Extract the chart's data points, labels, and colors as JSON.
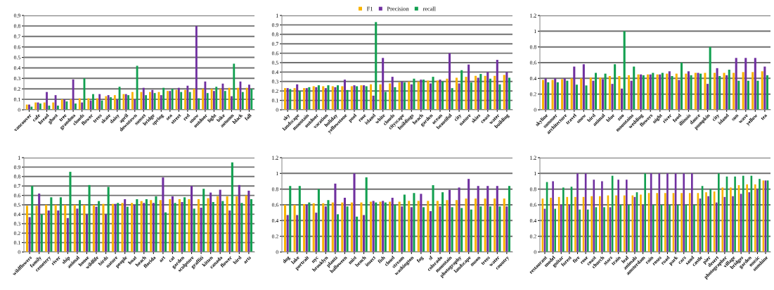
{
  "chart_data": [
    {
      "type": "bar",
      "grid": "y",
      "ylim": [
        0,
        0.9
      ],
      "yticks": [
        0,
        0.1,
        0.2,
        0.3,
        0.4,
        0.5,
        0.6,
        0.7,
        0.8,
        0.9
      ],
      "categories": [
        "vancouver",
        "cafe",
        "bread",
        "ghost",
        "tree",
        "grandma",
        "clouds",
        "flower",
        "trees",
        "skate",
        "daisy",
        "april",
        "downtown",
        "sunset",
        "bridge",
        "spring",
        "sea",
        "street",
        "red",
        "snow",
        "outdoor",
        "light",
        "bike",
        "autumn",
        "black",
        "fall"
      ],
      "series": [
        {
          "color": "#f9b400",
          "values": [
            0.05,
            0.07,
            0.07,
            0.07,
            0.1,
            0.1,
            0.11,
            0.11,
            0.11,
            0.13,
            0.14,
            0.15,
            0.17,
            0.17,
            0.17,
            0.17,
            0.18,
            0.19,
            0.19,
            0.2,
            0.2,
            0.2,
            0.2,
            0.21,
            0.21,
            0.21
          ]
        },
        {
          "color": "#7030a0",
          "values": [
            0.05,
            0.07,
            0.17,
            0.14,
            0.1,
            0.29,
            0.07,
            0.09,
            0.15,
            0.14,
            0.1,
            0.15,
            0.1,
            0.21,
            0.19,
            0.14,
            0.18,
            0.21,
            0.23,
            0.8,
            0.27,
            0.18,
            0.25,
            0.13,
            0.27,
            0.24
          ]
        },
        {
          "color": "#12a050",
          "values": [
            0.03,
            0.06,
            0.04,
            0.04,
            0.08,
            0.06,
            0.3,
            0.15,
            0.09,
            0.12,
            0.22,
            0.14,
            0.42,
            0.14,
            0.16,
            0.21,
            0.2,
            0.17,
            0.17,
            0.11,
            0.16,
            0.22,
            0.18,
            0.44,
            0.17,
            0.2
          ]
        }
      ]
    },
    {
      "type": "bar",
      "grid": "y",
      "legend": "top",
      "ylim": [
        0,
        1
      ],
      "yticks": [
        0,
        0.1,
        0.2,
        0.3,
        0.4,
        0.5,
        0.6,
        0.7,
        0.8,
        0.9,
        1
      ],
      "categories": [
        "sky",
        "landscape",
        "mountain",
        "outdoor",
        "vacation",
        "holiday",
        "yellowstone",
        "pool",
        "rose",
        "island",
        "white",
        "clouds",
        "cityscape",
        "buildings",
        "beach",
        "garden",
        "ocean",
        "beautiful",
        "city",
        "nature",
        "skies",
        "coast",
        "water",
        "building"
      ],
      "series": [
        {
          "name": "F1",
          "color": "#f9b400",
          "values": [
            0.23,
            0.23,
            0.23,
            0.25,
            0.25,
            0.25,
            0.25,
            0.25,
            0.26,
            0.27,
            0.27,
            0.28,
            0.29,
            0.3,
            0.3,
            0.31,
            0.31,
            0.33,
            0.34,
            0.35,
            0.36,
            0.36,
            0.36,
            0.37
          ]
        },
        {
          "name": "Precision",
          "color": "#7030a0",
          "values": [
            0.23,
            0.27,
            0.23,
            0.24,
            0.23,
            0.24,
            0.32,
            0.26,
            0.26,
            0.15,
            0.55,
            0.35,
            0.3,
            0.27,
            0.32,
            0.28,
            0.32,
            0.6,
            0.28,
            0.48,
            0.34,
            0.4,
            0.53,
            0.4
          ]
        },
        {
          "name": "recall",
          "color": "#12a050",
          "values": [
            0.22,
            0.2,
            0.24,
            0.26,
            0.26,
            0.26,
            0.21,
            0.25,
            0.25,
            0.93,
            0.19,
            0.24,
            0.29,
            0.33,
            0.32,
            0.35,
            0.3,
            0.23,
            0.42,
            0.29,
            0.38,
            0.33,
            0.27,
            0.34
          ]
        }
      ]
    },
    {
      "type": "bar",
      "grid": "y",
      "ylim": [
        0,
        1.2
      ],
      "yticks": [
        0,
        0.2,
        0.4,
        0.6,
        0.8,
        1,
        1.2
      ],
      "categories": [
        "skyline",
        "summer",
        "architecture",
        "travel",
        "snow",
        "bird",
        "animal",
        "blue",
        "zoo",
        "mountains",
        "wedding",
        "flowers",
        "night",
        "river",
        "food",
        "illinois",
        "dance",
        "pumpkin",
        "city",
        "island",
        "sun",
        "wave",
        "yellow",
        "tea"
      ],
      "series": [
        {
          "color": "#f9b400",
          "values": [
            0.38,
            0.38,
            0.39,
            0.4,
            0.4,
            0.41,
            0.41,
            0.43,
            0.43,
            0.44,
            0.45,
            0.45,
            0.45,
            0.46,
            0.46,
            0.46,
            0.47,
            0.47,
            0.47,
            0.47,
            0.47,
            0.48,
            0.48,
            0.49
          ]
        },
        {
          "color": "#7030a0",
          "values": [
            0.4,
            0.4,
            0.4,
            0.55,
            0.58,
            0.37,
            0.39,
            0.33,
            0.27,
            0.37,
            0.45,
            0.45,
            0.45,
            0.49,
            0.38,
            0.49,
            0.47,
            0.33,
            0.53,
            0.44,
            0.66,
            0.66,
            0.66,
            0.55
          ]
        },
        {
          "color": "#12a050",
          "values": [
            0.35,
            0.35,
            0.37,
            0.32,
            0.31,
            0.47,
            0.46,
            0.58,
            1.0,
            0.55,
            0.44,
            0.47,
            0.47,
            0.43,
            0.6,
            0.44,
            0.46,
            0.8,
            0.43,
            0.51,
            0.37,
            0.37,
            0.37,
            0.44
          ]
        }
      ]
    },
    {
      "type": "bar",
      "grid": "y",
      "ylim": [
        0,
        1
      ],
      "yticks": [
        0,
        0.1,
        0.2,
        0.3,
        0.4,
        0.5,
        0.6,
        0.7,
        0.8,
        0.9,
        1
      ],
      "categories": [
        "wildflowers",
        "family",
        "cemetery",
        "river",
        "ship",
        "animal",
        "house",
        "wildlife",
        "birds",
        "nature",
        "people",
        "boat",
        "beach",
        "florida",
        "art",
        "cat",
        "garden",
        "sculpture",
        "graffiti",
        "kitten",
        "canada",
        "flower",
        "bird",
        "arts"
      ],
      "series": [
        {
          "color": "#f9b400",
          "values": [
            0.49,
            0.49,
            0.5,
            0.5,
            0.5,
            0.5,
            0.5,
            0.5,
            0.51,
            0.51,
            0.52,
            0.52,
            0.54,
            0.55,
            0.55,
            0.56,
            0.56,
            0.56,
            0.56,
            0.57,
            0.59,
            0.59,
            0.59,
            0.6
          ]
        },
        {
          "color": "#7030a0",
          "values": [
            0.37,
            0.62,
            0.44,
            0.44,
            0.36,
            0.46,
            0.4,
            0.48,
            0.4,
            0.51,
            0.56,
            0.5,
            0.52,
            0.52,
            0.79,
            0.59,
            0.53,
            0.7,
            0.47,
            0.63,
            0.66,
            0.44,
            0.71,
            0.65
          ]
        },
        {
          "color": "#12a050",
          "values": [
            0.7,
            0.4,
            0.58,
            0.58,
            0.85,
            0.55,
            0.71,
            0.54,
            0.69,
            0.52,
            0.48,
            0.56,
            0.56,
            0.59,
            0.42,
            0.52,
            0.58,
            0.46,
            0.67,
            0.53,
            0.54,
            0.95,
            0.52,
            0.56
          ]
        }
      ]
    },
    {
      "type": "bar",
      "grid": "y",
      "ylim": [
        0,
        1.2
      ],
      "yticks": [
        0,
        0.2,
        0.4,
        0.6,
        0.8,
        1,
        1.2
      ],
      "categories": [
        "dog",
        "lake",
        "portrait",
        "nyc",
        "brooklyn",
        "plants",
        "halloween",
        "mist",
        "bench",
        "insect",
        "fish",
        "cloud",
        "stream",
        "washington",
        "fog",
        "sf",
        "colorado",
        "mountain",
        "photography",
        "landscape",
        "moon",
        "trees",
        "water",
        "country"
      ],
      "series": [
        {
          "color": "#f9b400",
          "values": [
            0.6,
            0.6,
            0.61,
            0.62,
            0.62,
            0.63,
            0.63,
            0.63,
            0.63,
            0.64,
            0.64,
            0.64,
            0.64,
            0.65,
            0.65,
            0.65,
            0.65,
            0.66,
            0.66,
            0.68,
            0.68,
            0.68,
            0.68,
            0.68
          ]
        },
        {
          "color": "#7030a0",
          "values": [
            0.47,
            0.47,
            0.6,
            0.5,
            0.58,
            0.87,
            0.69,
            1.0,
            0.47,
            0.65,
            0.65,
            0.69,
            0.58,
            0.57,
            0.74,
            0.52,
            0.58,
            0.79,
            0.82,
            0.93,
            0.84,
            0.84,
            0.84,
            0.58
          ]
        },
        {
          "color": "#12a050",
          "values": [
            0.84,
            0.84,
            0.63,
            0.8,
            0.66,
            0.48,
            0.58,
            0.45,
            0.95,
            0.63,
            0.63,
            0.6,
            0.73,
            0.75,
            0.57,
            0.85,
            0.76,
            0.57,
            0.56,
            0.54,
            0.58,
            0.58,
            0.58,
            0.84
          ]
        }
      ]
    },
    {
      "type": "bar",
      "grid": "y",
      "ylim": [
        0,
        1.2
      ],
      "yticks": [
        0,
        0.2,
        0.4,
        0.6,
        0.8,
        1,
        1.2
      ],
      "categories": [
        "restaurant",
        "model",
        "guitar",
        "forest",
        "fire",
        "rose",
        "coast",
        "church",
        "stars",
        "train",
        "leaf",
        "animals",
        "amsterdam",
        "rain",
        "roses",
        "road",
        "park",
        "cars",
        "sand",
        "castle",
        "pier",
        "desert",
        "photographer",
        "village",
        "bridges",
        "garden",
        "music",
        "sunshine"
      ],
      "series": [
        {
          "color": "#f9b400",
          "values": [
            0.68,
            0.69,
            0.7,
            0.7,
            0.7,
            0.7,
            0.71,
            0.71,
            0.72,
            0.72,
            0.72,
            0.72,
            0.73,
            0.75,
            0.75,
            0.75,
            0.75,
            0.75,
            0.75,
            0.75,
            0.76,
            0.77,
            0.82,
            0.82,
            0.85,
            0.86,
            0.86,
            0.91
          ]
        },
        {
          "color": "#7030a0",
          "values": [
            0.55,
            0.9,
            0.6,
            0.6,
            1.0,
            1.0,
            0.92,
            0.9,
            0.57,
            0.92,
            0.92,
            0.7,
            0.6,
            1.0,
            1.0,
            1.0,
            1.0,
            1.0,
            1.0,
            0.68,
            0.71,
            0.63,
            0.7,
            0.71,
            0.74,
            0.76,
            0.8,
            0.91
          ]
        },
        {
          "color": "#12a050",
          "values": [
            0.89,
            0.55,
            0.82,
            0.83,
            0.54,
            0.54,
            0.57,
            0.57,
            0.97,
            0.6,
            0.6,
            0.76,
            1.0,
            0.6,
            0.6,
            0.6,
            0.6,
            0.6,
            0.6,
            0.84,
            0.8,
            1.0,
            0.96,
            0.96,
            0.97,
            0.97,
            0.93,
            0.91
          ]
        }
      ]
    }
  ]
}
